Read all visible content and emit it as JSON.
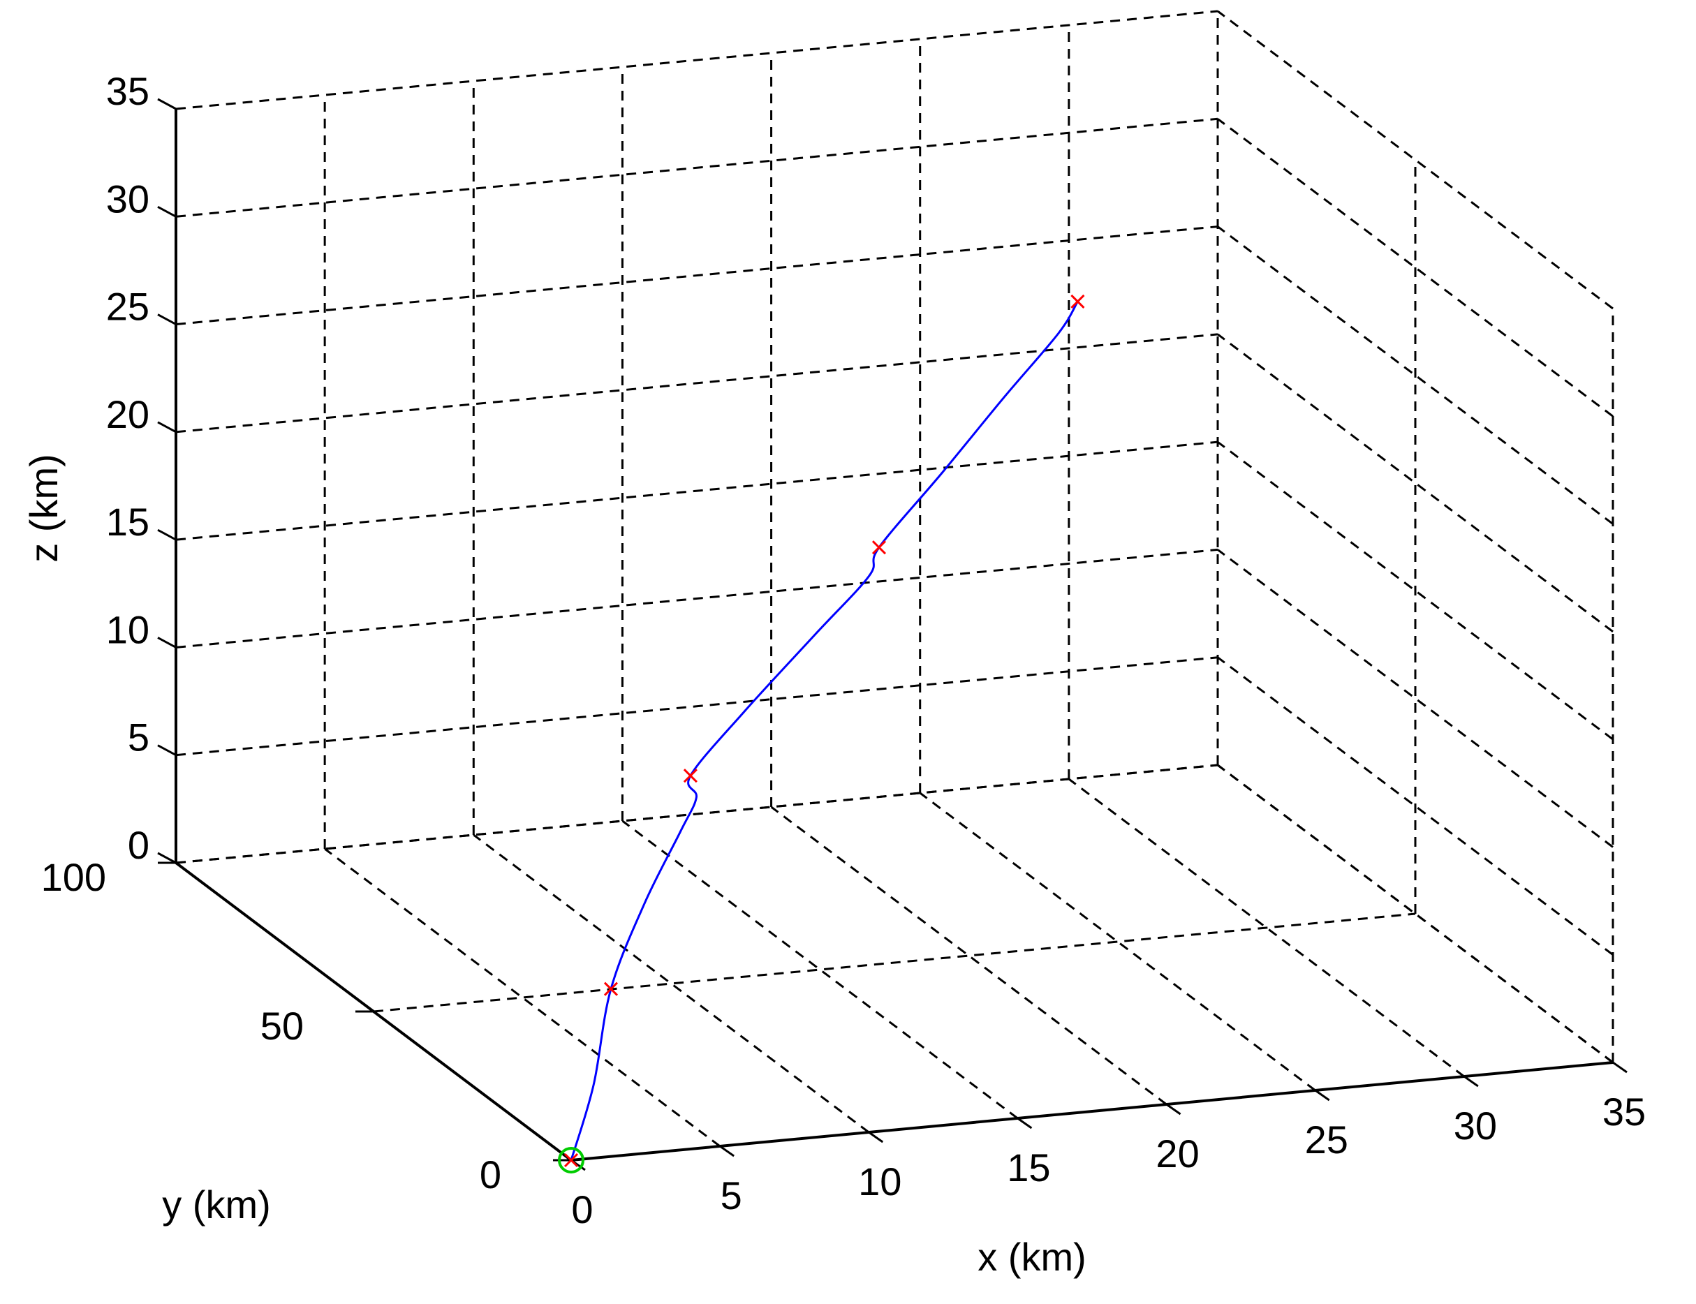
{
  "chart_data": {
    "type": "line3d",
    "title": "",
    "xlabel": "x (km)",
    "ylabel": "y (km)",
    "zlabel": "z (km)",
    "xlim": [
      0,
      35
    ],
    "ylim": [
      0,
      100
    ],
    "zlim": [
      0,
      35
    ],
    "xticks": [
      "0",
      "5",
      "10",
      "15",
      "20",
      "25",
      "30",
      "35"
    ],
    "yticks": [
      "0",
      "50",
      "100"
    ],
    "zticks": [
      "0",
      "5",
      "10",
      "15",
      "20",
      "25",
      "30",
      "35"
    ],
    "grid": true,
    "colors": {
      "trajectory": "#0000ff",
      "waypoint": "#ff0000",
      "start_marker": "#00cc00",
      "axis": "#000000",
      "grid": "#000000"
    },
    "waypoints": [
      {
        "x": 0,
        "y": 0,
        "z": 0
      },
      {
        "x": 2,
        "y": 5,
        "z": 7
      },
      {
        "x": 6,
        "y": 15,
        "z": 15
      },
      {
        "x": 13,
        "y": 20,
        "z": 24
      },
      {
        "x": 21,
        "y": 30,
        "z": 33
      }
    ],
    "trajectory": [
      {
        "x": 0.0,
        "y": 0.0,
        "z": 0.0
      },
      {
        "x": 1.1,
        "y": 2.6,
        "z": 3.0
      },
      {
        "x": 2.0,
        "y": 5.0,
        "z": 7.0
      },
      {
        "x": 3.6,
        "y": 8.5,
        "z": 10.3
      },
      {
        "x": 5.2,
        "y": 11.5,
        "z": 13.0
      },
      {
        "x": 6.0,
        "y": 13.5,
        "z": 14.2
      },
      {
        "x": 6.0,
        "y": 15.0,
        "z": 15.0
      },
      {
        "x": 8.0,
        "y": 16.5,
        "z": 17.5
      },
      {
        "x": 10.6,
        "y": 18.2,
        "z": 20.5
      },
      {
        "x": 12.6,
        "y": 19.5,
        "z": 22.8
      },
      {
        "x": 13.0,
        "y": 20.0,
        "z": 24.0
      },
      {
        "x": 15.5,
        "y": 23.0,
        "z": 26.7
      },
      {
        "x": 18.0,
        "y": 26.0,
        "z": 29.5
      },
      {
        "x": 20.2,
        "y": 28.8,
        "z": 31.8
      },
      {
        "x": 21.0,
        "y": 30.0,
        "z": 33.0
      }
    ]
  }
}
